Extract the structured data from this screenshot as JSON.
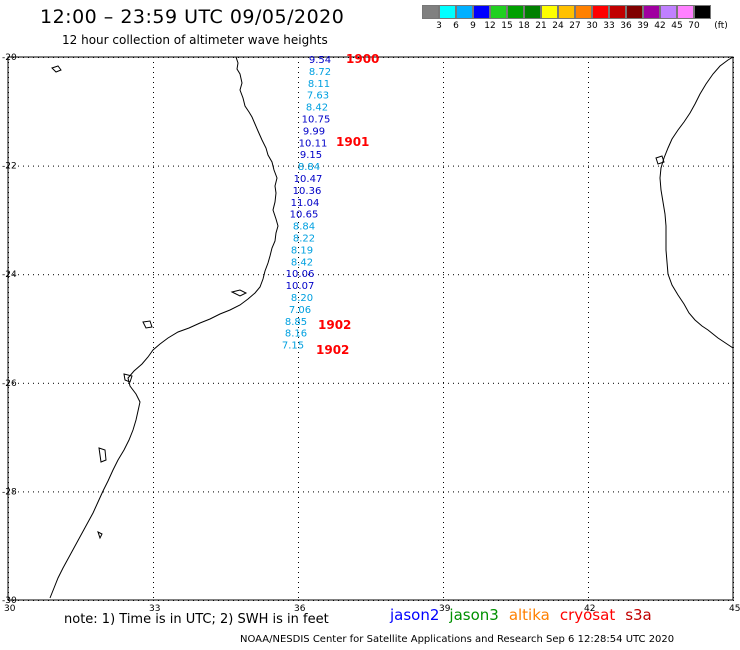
{
  "header": {
    "title": "12:00 – 23:59 UTC 09/05/2020",
    "subtitle": "12 hour collection of altimeter wave heights"
  },
  "legend": {
    "unit": "(ft)",
    "colors": [
      "#808080",
      "#00ffff",
      "#00b0ff",
      "#0000ff",
      "#20d020",
      "#00a000",
      "#008000",
      "#ffff00",
      "#ffc000",
      "#ff8000",
      "#ff0000",
      "#c00000",
      "#800000",
      "#a000a0",
      "#c080ff",
      "#ff80ff",
      "#000000"
    ],
    "ticks": [
      "3",
      "6",
      "9",
      "12",
      "15",
      "18",
      "21",
      "24",
      "27",
      "30",
      "33",
      "36",
      "39",
      "42",
      "45",
      "70"
    ]
  },
  "axes": {
    "lat_labels": [
      "-20",
      "-22",
      "-24",
      "-26",
      "-28",
      "-30"
    ],
    "lon_labels": [
      "30",
      "33",
      "36",
      "39",
      "42",
      "45"
    ]
  },
  "wave_heights": [
    {
      "value": "9.54",
      "lat": -20.0,
      "color": "#0000c8"
    },
    {
      "value": "8.72",
      "lat": -20.22,
      "color": "#00a0e0"
    },
    {
      "value": "8.11",
      "lat": -20.44,
      "color": "#00a0e0"
    },
    {
      "value": "7.63",
      "lat": -20.66,
      "color": "#00a0e0"
    },
    {
      "value": "8.42",
      "lat": -20.88,
      "color": "#00a0e0"
    },
    {
      "value": "10.75",
      "lat": -21.1,
      "color": "#0000c8"
    },
    {
      "value": "9.99",
      "lat": -21.32,
      "color": "#0000c8"
    },
    {
      "value": "10.11",
      "lat": -21.54,
      "color": "#0000c8"
    },
    {
      "value": "9.15",
      "lat": -21.76,
      "color": "#0000c8"
    },
    {
      "value": "8.84",
      "lat": -21.98,
      "color": "#00a0e0"
    },
    {
      "value": "10.47",
      "lat": -22.2,
      "color": "#0000c8"
    },
    {
      "value": "10.36",
      "lat": -22.42,
      "color": "#0000c8"
    },
    {
      "value": "11.04",
      "lat": -22.64,
      "color": "#0000c8"
    },
    {
      "value": "10.65",
      "lat": -22.86,
      "color": "#0000c8"
    },
    {
      "value": "8.84",
      "lat": -23.08,
      "color": "#00a0e0"
    },
    {
      "value": "8.22",
      "lat": -23.3,
      "color": "#00a0e0"
    },
    {
      "value": "8.19",
      "lat": -23.52,
      "color": "#00a0e0"
    },
    {
      "value": "8.42",
      "lat": -23.74,
      "color": "#00a0e0"
    },
    {
      "value": "10.06",
      "lat": -23.96,
      "color": "#0000c8"
    },
    {
      "value": "10.07",
      "lat": -24.18,
      "color": "#0000c8"
    },
    {
      "value": "8.20",
      "lat": -24.4,
      "color": "#00a0e0"
    },
    {
      "value": "7.06",
      "lat": -24.62,
      "color": "#00a0e0"
    },
    {
      "value": "8.85",
      "lat": -24.84,
      "color": "#00a0e0"
    },
    {
      "value": "8.16",
      "lat": -25.06,
      "color": "#00a0e0"
    },
    {
      "value": "7.15",
      "lat": -25.28,
      "color": "#00a0e0"
    }
  ],
  "time_labels": [
    {
      "text": "1900",
      "color": "#ff0000"
    },
    {
      "text": "1901",
      "color": "#ff0000"
    },
    {
      "text": "1902",
      "color": "#ff0000"
    },
    {
      "text": "1902",
      "color": "#ff0000"
    }
  ],
  "footer": {
    "note": "note: 1) Time is in UTC; 2) SWH is in feet",
    "missions": [
      {
        "name": "jason2",
        "color": "#0000ff"
      },
      {
        "name": "jason3",
        "color": "#009000"
      },
      {
        "name": "altika",
        "color": "#ff8000"
      },
      {
        "name": "cryosat",
        "color": "#ff0000"
      },
      {
        "name": "s3a",
        "color": "#c00000"
      }
    ],
    "credit": "NOAA/NESDIS Center for Satellite Applications and Research    Sep  6 12:28:54 UTC 2020"
  }
}
